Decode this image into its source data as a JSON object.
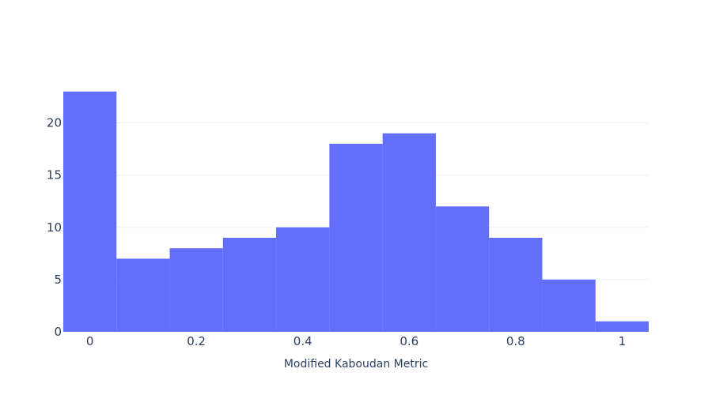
{
  "chart_data": {
    "type": "bar",
    "subtype": "histogram",
    "title": "",
    "xlabel": "Modified Kaboudan Metric",
    "ylabel": "",
    "bins": [
      {
        "x0": -0.05,
        "x1": 0.05,
        "count": 23
      },
      {
        "x0": 0.05,
        "x1": 0.15,
        "count": 7
      },
      {
        "x0": 0.15,
        "x1": 0.25,
        "count": 8
      },
      {
        "x0": 0.25,
        "x1": 0.35,
        "count": 9
      },
      {
        "x0": 0.35,
        "x1": 0.45,
        "count": 10
      },
      {
        "x0": 0.45,
        "x1": 0.55,
        "count": 18
      },
      {
        "x0": 0.55,
        "x1": 0.65,
        "count": 19
      },
      {
        "x0": 0.65,
        "x1": 0.75,
        "count": 12
      },
      {
        "x0": 0.75,
        "x1": 0.85,
        "count": 9
      },
      {
        "x0": 0.85,
        "x1": 0.95,
        "count": 5
      },
      {
        "x0": 0.95,
        "x1": 1.05,
        "count": 1
      }
    ],
    "xlim": [
      -0.05,
      1.05
    ],
    "ylim": [
      0,
      24.2
    ],
    "x_ticks": [
      0,
      0.2,
      0.4,
      0.6,
      0.8,
      1
    ],
    "x_tick_labels": [
      "0",
      "0.2",
      "0.4",
      "0.6",
      "0.8",
      "1"
    ],
    "y_ticks": [
      0,
      5,
      10,
      15,
      20
    ],
    "y_tick_labels": [
      "0",
      "5",
      "10",
      "15",
      "20"
    ],
    "grid": "horizontal",
    "bar_color": "#636efa"
  }
}
